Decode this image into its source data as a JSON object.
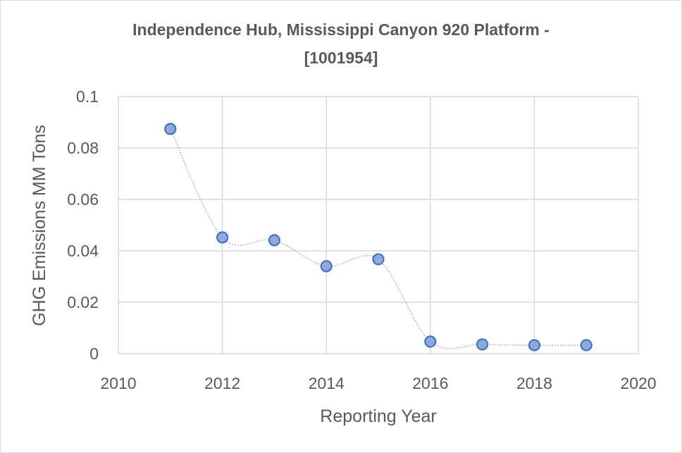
{
  "chart_data": {
    "type": "scatter",
    "title_line1": "Independence Hub, Mississippi Canyon 920 Platform -",
    "title_line2": "[1001954]",
    "xlabel": "Reporting Year",
    "ylabel": "GHG Emissions MM Tons",
    "xlim": [
      2010,
      2020
    ],
    "ylim": [
      0,
      0.1
    ],
    "x_ticks": [
      "2010",
      "2012",
      "2014",
      "2016",
      "2018",
      "2020"
    ],
    "y_ticks": [
      "0",
      "0.02",
      "0.04",
      "0.06",
      "0.08",
      "0.1"
    ],
    "grid": true,
    "line_style": "dotted smoothed",
    "x": [
      2011,
      2012,
      2013,
      2014,
      2015,
      2016,
      2017,
      2018,
      2019
    ],
    "y": [
      0.0874,
      0.0452,
      0.0441,
      0.034,
      0.0367,
      0.0047,
      0.0036,
      0.0033,
      0.0033
    ],
    "colors": {
      "marker_fill": "#8eaadb",
      "marker_stroke": "#4472c4",
      "line": "#a6a6a6",
      "grid": "#d9d9d9"
    }
  }
}
